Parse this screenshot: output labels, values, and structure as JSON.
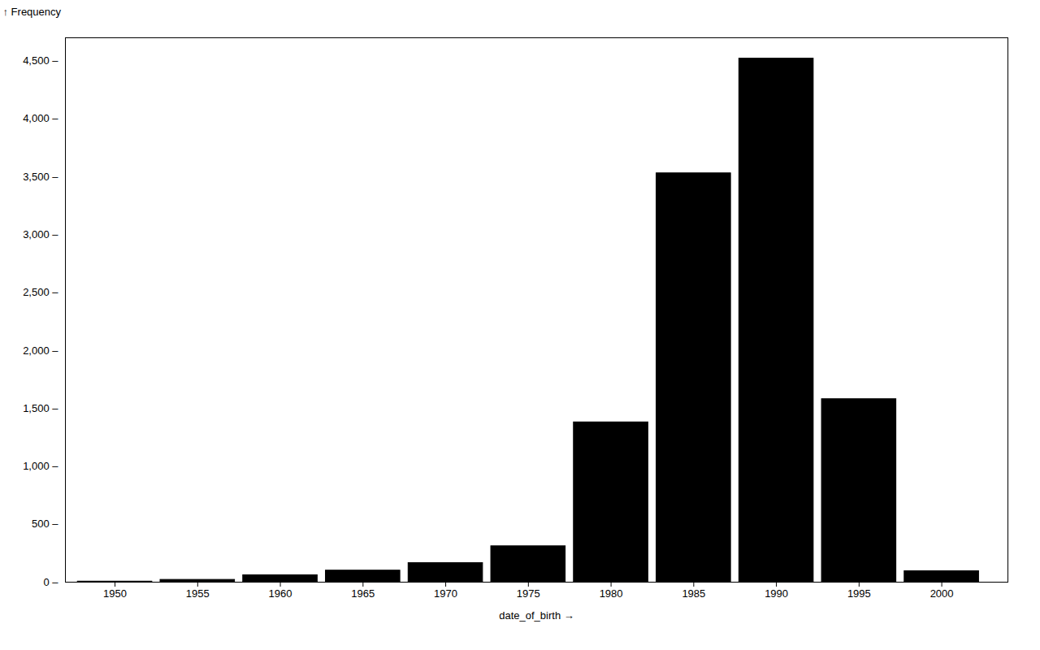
{
  "chart_data": {
    "type": "bar",
    "x": [
      1950,
      1955,
      1960,
      1965,
      1970,
      1975,
      1980,
      1985,
      1990,
      1995,
      2000
    ],
    "values": [
      5,
      20,
      60,
      100,
      165,
      310,
      1380,
      3530,
      4520,
      1580,
      95
    ],
    "color": "#000000",
    "xlabel": "date_of_birth →",
    "ylabel": "↑ Frequency",
    "xlim": [
      1947,
      2004
    ],
    "xticks": [
      1950,
      1955,
      1960,
      1965,
      1970,
      1975,
      1980,
      1985,
      1990,
      1995,
      2000
    ],
    "ylim": [
      0,
      4700
    ],
    "yticks": [
      {
        "value": 0,
        "label": "0 –"
      },
      {
        "value": 500,
        "label": "500 –"
      },
      {
        "value": 1000,
        "label": "1,000 –"
      },
      {
        "value": 1500,
        "label": "1,500 –"
      },
      {
        "value": 2000,
        "label": "2,000 –"
      },
      {
        "value": 2500,
        "label": "2,500 –"
      },
      {
        "value": 3000,
        "label": "3,000 –"
      },
      {
        "value": 3500,
        "label": "3,500 –"
      },
      {
        "value": 4000,
        "label": "4,000 –"
      },
      {
        "value": 4500,
        "label": "4,500 –"
      }
    ],
    "grid": false
  }
}
